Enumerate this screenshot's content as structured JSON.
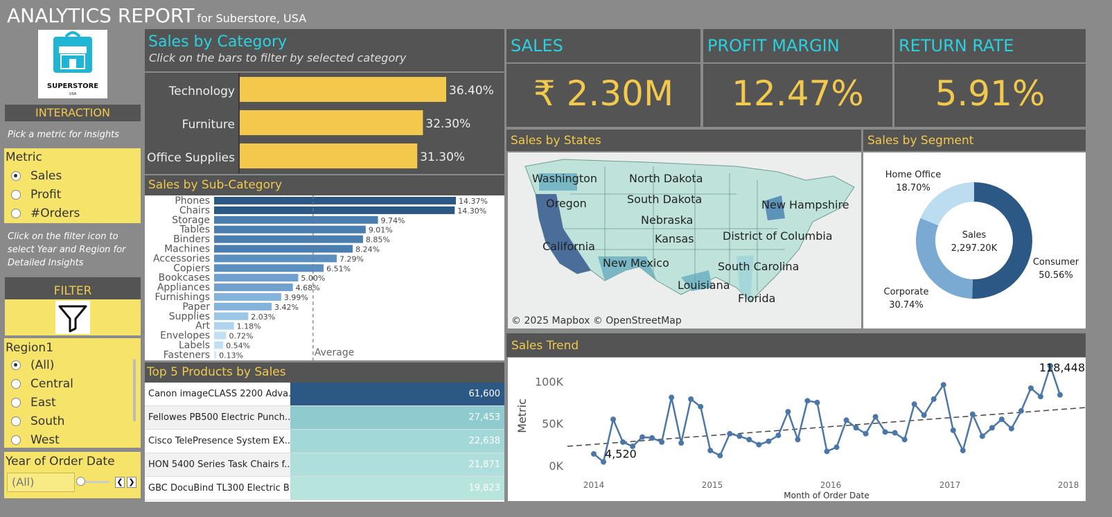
{
  "header": {
    "title": "ANALYTICS REPORT",
    "subtitle": "for Suberstore, USA"
  },
  "logo": {
    "text": "SUPERSTORE",
    "subtext": "USA"
  },
  "interaction": {
    "title": "INTERACTION",
    "hint": "Pick a metric for insights",
    "metric_label": "Metric",
    "metrics": [
      "Sales",
      "Profit",
      "#Orders"
    ],
    "selected_metric": "Sales",
    "filter_hint": "Click on the filter icon to select Year and Region for Detailed Insights"
  },
  "filter": {
    "title": "FILTER"
  },
  "region": {
    "label": "Region1",
    "options": [
      "(All)",
      "Central",
      "East",
      "South",
      "West"
    ],
    "selected": "(All)"
  },
  "year": {
    "label": "Year of Order Date",
    "value": "(All)"
  },
  "kpis": {
    "sales": {
      "label": "SALES",
      "value": "₹ 2.30M"
    },
    "profit_margin": {
      "label": "PROFIT MARGIN",
      "value": "12.47%"
    },
    "return_rate": {
      "label": "RETURN RATE",
      "value": "5.91%"
    }
  },
  "category_panel": {
    "title": "Sales by Category",
    "hint": "Click on the bars to filter by selected category"
  },
  "subcat_panel": {
    "title": "Sales by Sub-Category",
    "average_label": "Average"
  },
  "states_panel": {
    "title": "Sales by States",
    "attribution": "© 2025 Mapbox © OpenStreetMap"
  },
  "segment_panel": {
    "title": "Sales by Segment",
    "center_label": "Sales",
    "center_value": "2,297.20K"
  },
  "trend_panel": {
    "title": "Sales Trend"
  },
  "products_panel": {
    "title": "Top 5 Products by Sales"
  },
  "colors": {
    "accent_yellow": "#f2c94c",
    "accent_cyan": "#28d2e0",
    "dark_panel": "#545454",
    "blue_dark": "#2c5886"
  },
  "chart_data": [
    {
      "type": "bar",
      "title": "Sales by Category",
      "categories": [
        "Technology",
        "Furniture",
        "Office Supplies"
      ],
      "values": [
        36.4,
        32.3,
        31.3
      ],
      "labels": [
        "36.40%",
        "32.30%",
        "31.30%"
      ]
    },
    {
      "type": "bar",
      "title": "Sales by Sub-Category",
      "categories": [
        "Phones",
        "Chairs",
        "Storage",
        "Tables",
        "Binders",
        "Machines",
        "Accessories",
        "Copiers",
        "Bookcases",
        "Appliances",
        "Furnishings",
        "Paper",
        "Supplies",
        "Art",
        "Envelopes",
        "Labels",
        "Fasteners"
      ],
      "values": [
        14.37,
        14.3,
        9.74,
        9.01,
        8.85,
        8.24,
        7.29,
        6.51,
        5.0,
        4.68,
        3.99,
        3.42,
        2.03,
        1.18,
        0.72,
        0.54,
        0.13
      ],
      "labels": [
        "14.37%",
        "14.30%",
        "9.74%",
        "9.01%",
        "8.85%",
        "8.24%",
        "7.29%",
        "6.51%",
        "5.00%",
        "4.68%",
        "3.99%",
        "3.42%",
        "2.03%",
        "1.18%",
        "0.72%",
        "0.54%",
        "0.13%"
      ],
      "reference_line": "Average"
    },
    {
      "type": "pie",
      "title": "Sales by Segment",
      "categories": [
        "Consumer",
        "Corporate",
        "Home Office"
      ],
      "values": [
        50.56,
        30.74,
        18.7
      ],
      "labels": [
        "50.56%",
        "30.74%",
        "18.70%"
      ],
      "colors": [
        "#2c5886",
        "#7aaad2",
        "#bcdcf0"
      ]
    },
    {
      "type": "line",
      "title": "Sales Trend",
      "xlabel": "Month of Order Date",
      "ylabel": "Metric",
      "x_ticks": [
        "2014",
        "2015",
        "2016",
        "2017",
        "2018"
      ],
      "y_ticks": [
        "0K",
        "50K",
        "100K"
      ],
      "ylim": [
        0,
        120000
      ],
      "x": [
        "2014-01",
        "2014-02",
        "2014-03",
        "2014-04",
        "2014-05",
        "2014-06",
        "2014-07",
        "2014-08",
        "2014-09",
        "2014-10",
        "2014-11",
        "2014-12",
        "2015-01",
        "2015-02",
        "2015-03",
        "2015-04",
        "2015-05",
        "2015-06",
        "2015-07",
        "2015-08",
        "2015-09",
        "2015-10",
        "2015-11",
        "2015-12",
        "2016-01",
        "2016-02",
        "2016-03",
        "2016-04",
        "2016-05",
        "2016-06",
        "2016-07",
        "2016-08",
        "2016-09",
        "2016-10",
        "2016-11",
        "2016-12",
        "2017-01",
        "2017-02",
        "2017-03",
        "2017-04",
        "2017-05",
        "2017-06",
        "2017-07",
        "2017-08",
        "2017-09",
        "2017-10",
        "2017-11",
        "2017-12"
      ],
      "values": [
        14000,
        4520,
        55000,
        28000,
        23000,
        34000,
        33000,
        28000,
        81000,
        27000,
        79000,
        70000,
        18000,
        12000,
        38000,
        35000,
        31000,
        25000,
        29000,
        36000,
        64000,
        31000,
        77000,
        75000,
        17000,
        22000,
        54000,
        45000,
        38000,
        58000,
        40000,
        39000,
        31000,
        73000,
        60000,
        79000,
        96000,
        42000,
        18000,
        61000,
        35000,
        45000,
        55000,
        44000,
        65000,
        92000,
        82000,
        118448
      ],
      "extra_point": 84000,
      "point_labels": {
        "min": "4,520",
        "max": "118,448"
      },
      "trend_line": [
        23000,
        69000
      ]
    },
    {
      "type": "table",
      "title": "Top 5 Products by Sales",
      "rows": [
        {
          "name": "Canon imageCLASS 2200 Adva..",
          "value": "61,600",
          "num": 61600
        },
        {
          "name": "Fellowes PB500 Electric Punch..",
          "value": "27,453",
          "num": 27453
        },
        {
          "name": "Cisco TelePresence System EX..",
          "value": "22,638",
          "num": 22638
        },
        {
          "name": "HON 5400 Series Task Chairs f..",
          "value": "21,871",
          "num": 21871
        },
        {
          "name": "GBC DocuBind TL300 Electric B..",
          "value": "19,823",
          "num": 19823
        }
      ]
    }
  ],
  "map_labels": [
    "Washington",
    "North Dakota",
    "Oregon",
    "South Dakota",
    "New Hampshire",
    "Nebraska",
    "California",
    "Kansas",
    "District of Columbia",
    "New Mexico",
    "South Carolina",
    "Louisiana",
    "Florida"
  ]
}
